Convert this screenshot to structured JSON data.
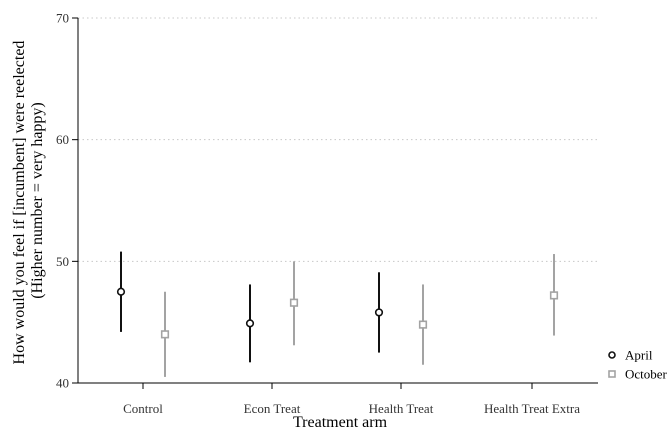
{
  "chart_data": {
    "type": "scatter",
    "subtype": "point-estimates-with-confidence-intervals",
    "categories": [
      "Control",
      "Econ Treat",
      "Health Treat",
      "Health Treat Extra"
    ],
    "xlabel": "Treatment arm",
    "ylabel": [
      "How would you feel if [incumbent] were reelected",
      "(Higher number = very happy)"
    ],
    "ylim": [
      40,
      70
    ],
    "yticks": [
      40,
      50,
      60,
      70
    ],
    "grid": "horizontal-dotted",
    "legend": "right",
    "series": [
      {
        "name": "April",
        "marker": "circle",
        "color": "#111111",
        "values": [
          47.5,
          44.9,
          45.8,
          null
        ],
        "ci_low": [
          44.2,
          41.7,
          42.5,
          null
        ],
        "ci_high": [
          50.8,
          48.1,
          49.1,
          null
        ]
      },
      {
        "name": "October",
        "marker": "square",
        "color": "#a3a3a3",
        "values": [
          44.0,
          46.6,
          44.8,
          47.2
        ],
        "ci_low": [
          40.5,
          43.1,
          41.5,
          43.9
        ],
        "ci_high": [
          47.5,
          50.0,
          48.1,
          50.6
        ]
      }
    ]
  }
}
